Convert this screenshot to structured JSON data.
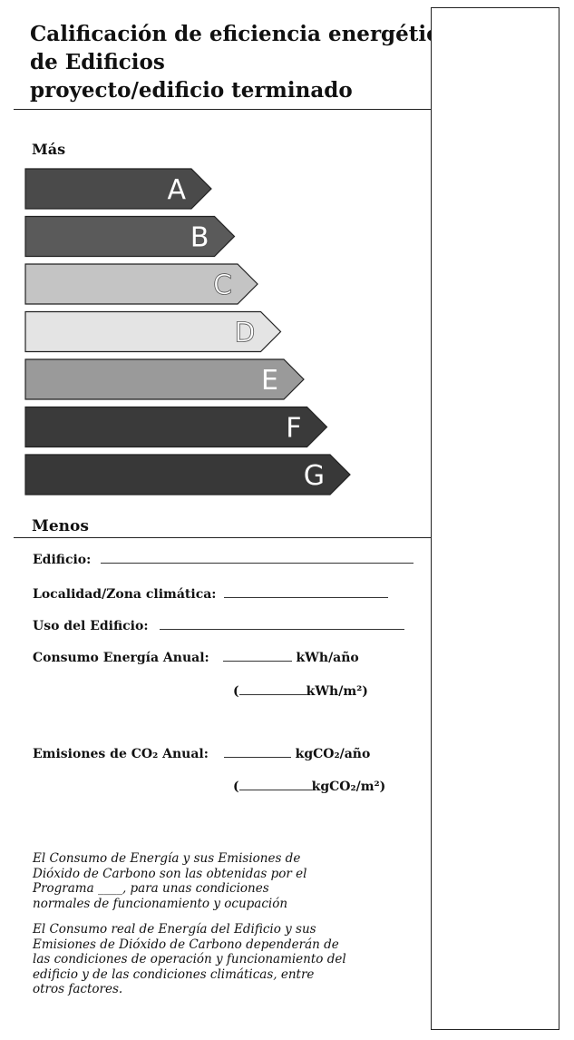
{
  "header": {
    "title_lines": [
      "Calificación de eficiencia energética",
      "de Edificios",
      "proyecto/edificio terminado"
    ]
  },
  "scale": {
    "top_label": "Más",
    "bottom_label": "Menos",
    "classes": [
      {
        "letter": "A",
        "color": "#4a4a4a"
      },
      {
        "letter": "B",
        "color": "#5a5a5a"
      },
      {
        "letter": "C",
        "color": "#c4c4c4"
      },
      {
        "letter": "D",
        "color": "#e4e4e4"
      },
      {
        "letter": "E",
        "color": "#9a9a9a"
      },
      {
        "letter": "F",
        "color": "#3a3a3a"
      },
      {
        "letter": "G",
        "color": "#383838"
      }
    ]
  },
  "fields": {
    "edificio": "Edificio:",
    "localidad": "Localidad/Zona climática:",
    "uso": "Uso del Edificio:",
    "consumo_label": "Consumo Energía Anual:",
    "consumo_unit": "kWh/año",
    "consumo_unit_m2": "kWh/m²)",
    "emisiones_label": "Emisiones de CO₂ Anual:",
    "emisiones_unit": "kgCO₂/año",
    "emisiones_unit_m2": "kgCO₂/m²)",
    "open_paren": "("
  },
  "notes": {
    "note1": [
      "El Consumo de Energía y sus Emisiones de",
      "Dióxido de Carbono son las obtenidas por el",
      "Programa ____, para unas condiciones",
      "normales de funcionamiento y ocupación"
    ],
    "note2": [
      "El Consumo real de Energía del Edificio y sus",
      "Emisiones de Dióxido de Carbono dependerán de",
      "las condiciones de operación y funcionamiento del",
      "edificio y de las condiciones climáticas, entre",
      "otros factores."
    ]
  }
}
